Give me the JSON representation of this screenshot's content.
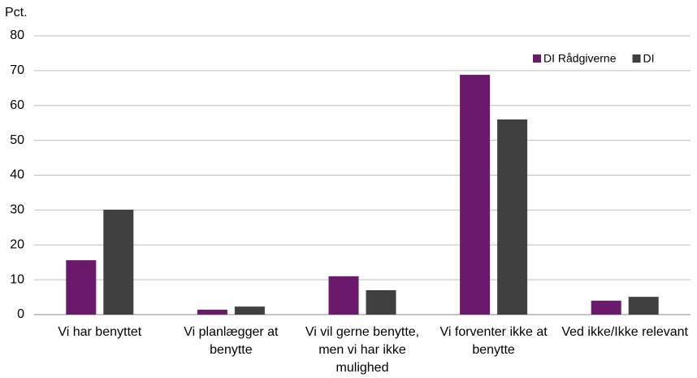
{
  "chart_data": {
    "type": "bar",
    "y_label": "Pct.",
    "categories": [
      "Vi har benyttet",
      "Vi planlægger at benytte",
      "Vi vil gerne benytte, men vi har ikke mulighed",
      "Vi forventer ikke at benytte",
      "Ved ikke/Ikke relevant"
    ],
    "series": [
      {
        "name": "DI Rådgiverne",
        "color": "#6b1a6b",
        "values": [
          15.6,
          1.4,
          11,
          68.8,
          4
        ]
      },
      {
        "name": "DI",
        "color": "#404040",
        "values": [
          30.1,
          2.3,
          7,
          56,
          5.1
        ]
      }
    ],
    "ylim": [
      0,
      80
    ],
    "yticks": [
      0,
      10,
      20,
      30,
      40,
      50,
      60,
      70,
      80
    ],
    "grid": true,
    "legend": "top-right"
  }
}
